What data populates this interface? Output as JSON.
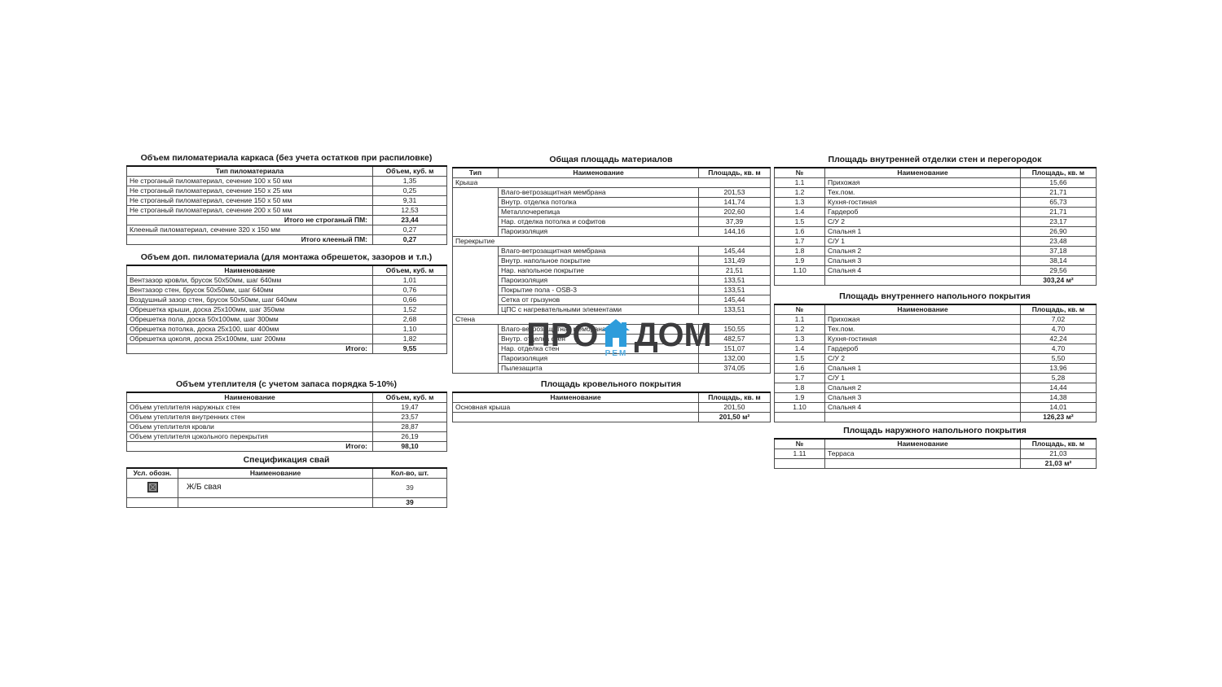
{
  "colors": {
    "accent_blue": "#2d9cdb",
    "logo_dark": "#3b3b3d",
    "rem_blue": "#54aee3"
  },
  "watermark": {
    "pro": "ПРО",
    "dom": "ДОМ",
    "rem": "РЕМ"
  },
  "tables": {
    "lumber_frame": {
      "title": "Объем пиломатериала каркаса (без учета остатков при распиловке)",
      "headers": [
        "Тип пиломатериала",
        "Объем, куб. м"
      ],
      "widths": [
        302,
        91
      ],
      "rows": [
        {
          "c": [
            "Не строганый пиломатериал, сечение 100 х 50 мм",
            "1,35"
          ]
        },
        {
          "c": [
            "Не строганый пиломатериал, сечение 150 х 25 мм",
            "0,25"
          ]
        },
        {
          "c": [
            "Не строганый пиломатериал, сечение 150 х 50 мм",
            "9,31"
          ]
        },
        {
          "c": [
            "Не строганый пиломатериал, сечение 200 х 50 мм",
            "12,53"
          ]
        },
        {
          "k": "t",
          "c": [
            "Итого не строганый ПМ:",
            "23,44"
          ]
        },
        {
          "c": [
            "Клееный пиломатериал, сечение 320 х 150 мм",
            "0,27"
          ]
        },
        {
          "k": "t",
          "c": [
            "Итого клееный ПМ:",
            "0,27"
          ]
        }
      ]
    },
    "lumber_extra": {
      "title": "Объем доп. пиломатериала (для монтажа обрешеток, зазоров и т.п.)",
      "headers": [
        "Наименование",
        "Объем, куб. м"
      ],
      "widths": [
        302,
        91
      ],
      "rows": [
        {
          "c": [
            "Вентзазор кровли, брусок 50х50мм, шаг 640мм",
            "1,01"
          ]
        },
        {
          "c": [
            "Вентзазор стен, брусок 50х50мм, шаг 640мм",
            "0,76"
          ]
        },
        {
          "c": [
            "Воздушный зазор стен, брусок 50х50мм, шаг 640мм",
            "0,66"
          ]
        },
        {
          "c": [
            "Обрешетка крыши, доска 25х100мм, шаг 350мм",
            "1,52"
          ]
        },
        {
          "c": [
            "Обрешетка пола, доска 50х100мм, шаг 300мм",
            "2,68"
          ]
        },
        {
          "c": [
            "Обрешетка потолка, доска 25х100, шаг 400мм",
            "1,10"
          ]
        },
        {
          "c": [
            "Обрешетка цоколя, доска 25х100мм, шаг 200мм",
            "1,82"
          ]
        },
        {
          "k": "t",
          "c": [
            "Итого:",
            "9,55"
          ]
        }
      ]
    },
    "insulation": {
      "title": "Объем утеплителя (с учетом запаса порядка 5-10%)",
      "headers": [
        "Наименование",
        "Объем, куб. м"
      ],
      "widths": [
        302,
        91
      ],
      "rows": [
        {
          "c": [
            "Объем утеплителя наружных стен",
            "19,47"
          ]
        },
        {
          "c": [
            "Объем утеплителя внутренних стен",
            "23,57"
          ]
        },
        {
          "c": [
            "Объем утеплителя кровли",
            "28,87"
          ]
        },
        {
          "c": [
            "Объем утеплителя цокольного перекрытия",
            "26,19"
          ]
        },
        {
          "k": "t",
          "c": [
            "Итого:",
            "98,10"
          ]
        }
      ]
    },
    "piles": {
      "title": "Спецификация свай",
      "headers": [
        "Усл. обозн.",
        "Наименование",
        "Кол-во, шт."
      ],
      "widths": [
        63,
        239,
        91
      ],
      "rows": [
        {
          "c": [
            "",
            "Ж/Б свая",
            "39"
          ],
          "icon": true,
          "h": 24
        },
        {
          "k": "t",
          "c": [
            "",
            "",
            "39"
          ]
        }
      ]
    },
    "materials": {
      "title": "Общая площадь материалов",
      "headers": [
        "Тип",
        "Наименование",
        "Площадь, кв. м"
      ],
      "widths": [
        56,
        246,
        88
      ],
      "rows": [
        {
          "k": "g",
          "span": 5,
          "c": [
            "Крыша"
          ]
        },
        {
          "k": "s",
          "c": [
            "Влаго-ветрозащитная мембрана",
            "201,53"
          ]
        },
        {
          "k": "s",
          "c": [
            "Внутр. отделка потолка",
            "141,74"
          ]
        },
        {
          "k": "s",
          "c": [
            "Металлочерепица",
            "202,60"
          ]
        },
        {
          "k": "s",
          "c": [
            "Нар. отделка потолка и софитов",
            "37,39"
          ]
        },
        {
          "k": "s",
          "c": [
            "Пароизоляция",
            "144,16"
          ]
        },
        {
          "k": "g",
          "span": 7,
          "c": [
            "Перекрытие"
          ]
        },
        {
          "k": "s",
          "c": [
            "Влаго-ветрозащитная мембрана",
            "145,44"
          ]
        },
        {
          "k": "s",
          "c": [
            "Внутр. напольное покрытие",
            "131,49"
          ]
        },
        {
          "k": "s",
          "c": [
            "Нар. напольное покрытие",
            "21,51"
          ]
        },
        {
          "k": "s",
          "c": [
            "Пароизоляция",
            "133,51"
          ]
        },
        {
          "k": "s",
          "c": [
            "Покрытие пола - OSB-3",
            "133,51"
          ]
        },
        {
          "k": "s",
          "c": [
            "Сетка от грызунов",
            "145,44"
          ]
        },
        {
          "k": "s",
          "c": [
            "ЦПС с нагревательными элементами",
            "133,51"
          ]
        },
        {
          "k": "g",
          "span": 5,
          "c": [
            "Стена"
          ]
        },
        {
          "k": "s",
          "c": [
            "Влаго-ветрозащитная мембрана",
            "150,55"
          ]
        },
        {
          "k": "s",
          "c": [
            "Внутр. отделка стен",
            "482,57"
          ]
        },
        {
          "k": "s",
          "c": [
            "Нар. отделка стен",
            "151,07"
          ]
        },
        {
          "k": "s",
          "c": [
            "Пароизоляция",
            "132,00"
          ]
        },
        {
          "k": "s",
          "c": [
            "Пылезащита",
            "374,05"
          ]
        }
      ]
    },
    "roofing": {
      "title": "Площадь кровельного покрытия",
      "headers": [
        "Наименование",
        "Площадь, кв. м"
      ],
      "widths": [
        302,
        88
      ],
      "rows": [
        {
          "c": [
            "Основная крыша",
            "201,50"
          ]
        },
        {
          "k": "t",
          "c": [
            "",
            "201,50 м²"
          ]
        }
      ]
    },
    "walls_finish": {
      "title": "Площадь внутренней отделки стен и перегородок",
      "headers": [
        "№",
        "Наименование",
        "Площадь, кв. м"
      ],
      "widths": [
        62,
        240,
        93
      ],
      "rows": [
        {
          "c": [
            "1.1",
            "Прихожая",
            "15,66"
          ]
        },
        {
          "c": [
            "1.2",
            "Тех.пом.",
            "21,71"
          ]
        },
        {
          "c": [
            "1.3",
            "Кухня-гостиная",
            "65,73"
          ]
        },
        {
          "c": [
            "1.4",
            "Гардероб",
            "21,71"
          ]
        },
        {
          "c": [
            "1.5",
            "С/У 2",
            "23,17"
          ]
        },
        {
          "c": [
            "1.6",
            "Спальня 1",
            "26,90"
          ]
        },
        {
          "c": [
            "1.7",
            "С/У 1",
            "23,48"
          ]
        },
        {
          "c": [
            "1.8",
            "Спальня 2",
            "37,18"
          ]
        },
        {
          "c": [
            "1.9",
            "Спальня 3",
            "38,14"
          ]
        },
        {
          "c": [
            "1.10",
            "Спальня 4",
            "29,56"
          ]
        },
        {
          "k": "t",
          "c": [
            "",
            "",
            "303,24 м²"
          ]
        }
      ]
    },
    "floor_inner": {
      "title": "Площадь внутреннего напольного покрытия",
      "headers": [
        "№",
        "Наименование",
        "Площадь, кв. м"
      ],
      "widths": [
        62,
        240,
        93
      ],
      "rows": [
        {
          "c": [
            "1.1",
            "Прихожая",
            "7,02"
          ]
        },
        {
          "c": [
            "1.2",
            "Тех.пом.",
            "4,70"
          ]
        },
        {
          "c": [
            "1.3",
            "Кухня-гостиная",
            "42,24"
          ]
        },
        {
          "c": [
            "1.4",
            "Гардероб",
            "4,70"
          ]
        },
        {
          "c": [
            "1.5",
            "С/У 2",
            "5,50"
          ]
        },
        {
          "c": [
            "1.6",
            "Спальня 1",
            "13,96"
          ]
        },
        {
          "c": [
            "1.7",
            "С/У 1",
            "5,28"
          ]
        },
        {
          "c": [
            "1.8",
            "Спальня 2",
            "14,44"
          ]
        },
        {
          "c": [
            "1.9",
            "Спальня 3",
            "14,38"
          ]
        },
        {
          "c": [
            "1.10",
            "Спальня 4",
            "14,01"
          ]
        },
        {
          "k": "t",
          "c": [
            "",
            "",
            "126,23 м²"
          ]
        }
      ]
    },
    "floor_outer": {
      "title": "Площадь наружного напольного покрытия",
      "headers": [
        "№",
        "Наименование",
        "Площадь, кв. м"
      ],
      "widths": [
        62,
        240,
        93
      ],
      "rows": [
        {
          "c": [
            "1.11",
            "Терраса",
            "21,03"
          ]
        },
        {
          "k": "t",
          "c": [
            "",
            "",
            "21,03 м²"
          ]
        }
      ]
    }
  }
}
